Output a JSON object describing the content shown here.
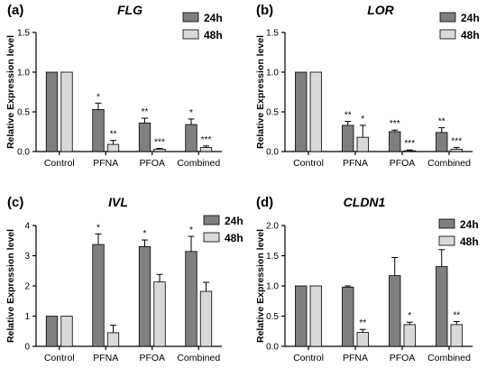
{
  "chart_data": [
    {
      "type": "bar",
      "panel": "(a)",
      "title": "FLG",
      "ylabel": "Relative Expression level",
      "ylim": [
        0,
        1.5
      ],
      "yticks": [
        "0.0",
        "0.5",
        "1.0",
        "1.5"
      ],
      "categories": [
        "Control",
        "PFNA",
        "PFOA",
        "Combined"
      ],
      "series": [
        {
          "name": "24h",
          "color": "#7f7f7f",
          "values": [
            1.0,
            0.53,
            0.36,
            0.34
          ],
          "errors": [
            0,
            0.08,
            0.06,
            0.07
          ],
          "stars": [
            "",
            "*",
            "**",
            "*"
          ]
        },
        {
          "name": "48h",
          "color": "#d9d9d9",
          "values": [
            1.0,
            0.09,
            0.03,
            0.05
          ],
          "errors": [
            0,
            0.05,
            0.01,
            0.02
          ],
          "stars": [
            "",
            "**",
            "***",
            "***"
          ]
        }
      ]
    },
    {
      "type": "bar",
      "panel": "(b)",
      "title": "LOR",
      "ylabel": "Relative Expression level",
      "ylim": [
        0,
        1.5
      ],
      "yticks": [
        "0.0",
        "0.5",
        "1.0",
        "1.5"
      ],
      "categories": [
        "Control",
        "PFNA",
        "PFOA",
        "Combined"
      ],
      "series": [
        {
          "name": "24h",
          "color": "#7f7f7f",
          "values": [
            1.0,
            0.33,
            0.25,
            0.24
          ],
          "errors": [
            0,
            0.05,
            0.02,
            0.06
          ],
          "stars": [
            "",
            "**",
            "***",
            "**"
          ]
        },
        {
          "name": "48h",
          "color": "#d9d9d9",
          "values": [
            1.0,
            0.18,
            0.01,
            0.03
          ],
          "errors": [
            0,
            0.15,
            0.01,
            0.02
          ],
          "stars": [
            "",
            "*",
            "***",
            "***"
          ]
        }
      ]
    },
    {
      "type": "bar",
      "panel": "(c)",
      "title": "IVL",
      "ylabel": "Relative Expression level",
      "ylim": [
        0,
        4
      ],
      "yticks": [
        "0",
        "1",
        "2",
        "3",
        "4"
      ],
      "categories": [
        "Control",
        "PFNA",
        "PFOA",
        "Combined"
      ],
      "series": [
        {
          "name": "24h",
          "color": "#7f7f7f",
          "values": [
            1.0,
            3.37,
            3.3,
            3.14
          ],
          "errors": [
            0,
            0.35,
            0.22,
            0.5
          ],
          "stars": [
            "",
            "*",
            "*",
            "*"
          ]
        },
        {
          "name": "48h",
          "color": "#d9d9d9",
          "values": [
            1.0,
            0.45,
            2.13,
            1.82
          ],
          "errors": [
            0,
            0.25,
            0.25,
            0.3
          ],
          "stars": [
            "",
            "",
            "",
            ""
          ]
        }
      ]
    },
    {
      "type": "bar",
      "panel": "(d)",
      "title": "CLDN1",
      "ylabel": "Relative Expression level",
      "ylim": [
        0,
        2.0
      ],
      "yticks": [
        "0.0",
        "0.5",
        "1.0",
        "1.5",
        "2.0"
      ],
      "categories": [
        "Control",
        "PFNA",
        "PFOA",
        "Combined"
      ],
      "series": [
        {
          "name": "24h",
          "color": "#7f7f7f",
          "values": [
            1.0,
            0.98,
            1.17,
            1.32
          ],
          "errors": [
            0,
            0.02,
            0.3,
            0.28
          ],
          "stars": [
            "",
            "",
            "",
            ""
          ]
        },
        {
          "name": "48h",
          "color": "#d9d9d9",
          "values": [
            1.0,
            0.23,
            0.36,
            0.36
          ],
          "errors": [
            0,
            0.05,
            0.04,
            0.05
          ],
          "stars": [
            "",
            "**",
            "*",
            "**"
          ]
        }
      ]
    }
  ]
}
